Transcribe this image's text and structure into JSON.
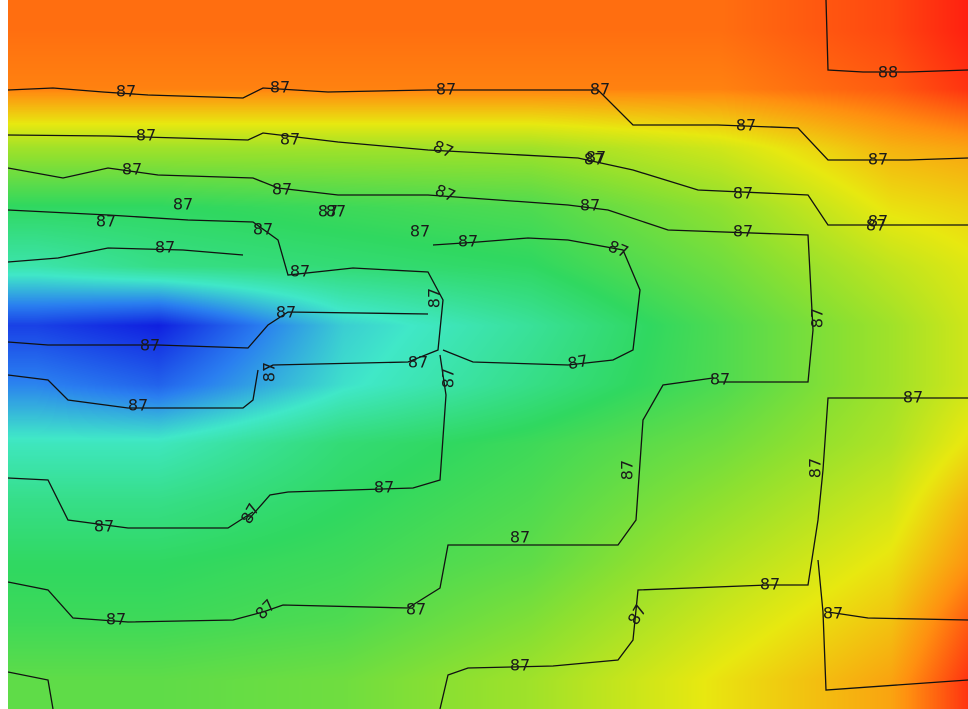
{
  "chart_data": {
    "type": "heatmap",
    "title": "",
    "xlabel": "",
    "ylabel": "",
    "colormap": [
      "#1020e0",
      "#2a7ff0",
      "#40e8c8",
      "#30d860",
      "#8ee030",
      "#e8e810",
      "#ff9010",
      "#ff2010"
    ],
    "grid": false,
    "legend": "none",
    "columns": 7,
    "rows": 12,
    "z": [
      [
        87.9,
        87.9,
        87.9,
        87.9,
        87.9,
        88.0,
        88.1
      ],
      [
        87.85,
        87.85,
        87.85,
        87.85,
        87.85,
        87.95,
        88.05
      ],
      [
        87.3,
        87.3,
        87.3,
        87.3,
        87.45,
        87.7,
        87.75
      ],
      [
        86.95,
        86.95,
        87.0,
        87.05,
        87.25,
        87.55,
        87.6
      ],
      [
        86.75,
        86.85,
        86.9,
        86.95,
        87.15,
        87.4,
        87.5
      ],
      [
        86.2,
        86.1,
        86.6,
        86.8,
        87.05,
        87.3,
        87.45
      ],
      [
        86.4,
        86.3,
        86.65,
        86.85,
        87.05,
        87.3,
        87.45
      ],
      [
        86.7,
        86.7,
        86.9,
        87.0,
        87.15,
        87.35,
        87.55
      ],
      [
        86.85,
        86.85,
        86.95,
        87.05,
        87.25,
        87.45,
        87.7
      ],
      [
        86.95,
        86.95,
        87.0,
        87.1,
        87.35,
        87.55,
        87.8
      ],
      [
        87.0,
        87.0,
        87.05,
        87.2,
        87.45,
        87.65,
        87.95
      ],
      [
        87.1,
        87.1,
        87.15,
        87.3,
        87.55,
        87.75,
        88.05
      ]
    ],
    "contour_levels": [
      87,
      88
    ],
    "contour_labels": [
      "87",
      "87",
      "87",
      "87",
      "87",
      "87",
      "87",
      "87",
      "87",
      "87",
      "87",
      "87",
      "87",
      "87",
      "87",
      "87",
      "87",
      "87",
      "87",
      "87",
      "87",
      "87",
      "87",
      "87",
      "87",
      "87",
      "87",
      "87",
      "87",
      "87",
      "87",
      "87",
      "87",
      "87",
      "87",
      "87",
      "87",
      "87",
      "87",
      "87",
      "87",
      "87",
      "87",
      "87",
      "87",
      "87",
      "87",
      "87",
      "87",
      "87",
      "87",
      "87",
      "87",
      "88"
    ]
  }
}
